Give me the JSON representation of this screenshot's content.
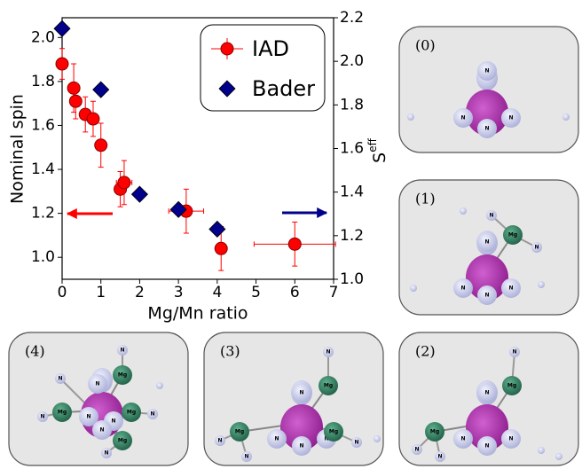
{
  "chart_data": {
    "type": "scatter",
    "xlabel": "Mg/Mn ratio",
    "ylabel": "Nominal spin",
    "y2label": "S",
    "y2label_superscript": "eff",
    "xlim": [
      0,
      7
    ],
    "xticks": [
      0,
      1,
      2,
      3,
      4,
      5,
      6,
      7
    ],
    "ylim": [
      0.9,
      2.09
    ],
    "yticks": [
      {
        "value": 1.0,
        "label": "1.0"
      },
      1.2,
      1.4,
      1.6,
      1.8,
      {
        "value": 2.0,
        "label": "2.0"
      }
    ],
    "y2lim": [
      1.0,
      2.2
    ],
    "y2ticks": [
      {
        "value": 1.0,
        "label": "1.0"
      },
      1.2,
      1.4,
      1.6,
      1.8,
      {
        "value": 2.0,
        "label": "2.0"
      },
      2.2
    ],
    "legend": "upper right",
    "series": [
      {
        "name": "IAD",
        "color": "#ff0000",
        "marker": "circle",
        "x": [
          0,
          0.3,
          0.35,
          0.6,
          0.8,
          1.0,
          1.5,
          1.6,
          3.2,
          4.1,
          6.0
        ],
        "values": [
          1.88,
          1.77,
          1.71,
          1.65,
          1.63,
          1.51,
          1.31,
          1.34,
          1.21,
          1.04,
          1.06
        ],
        "yerr": [
          0.07,
          0.11,
          0.08,
          0.08,
          0.08,
          0.1,
          0.08,
          0.1,
          0.1,
          0.1,
          0.1
        ],
        "xerr": [
          0,
          0.1,
          0.1,
          0.1,
          0.1,
          0.1,
          0.15,
          0.2,
          0.45,
          0.1,
          1.05
        ]
      },
      {
        "name": "Bader",
        "color": "#00008b",
        "marker": "diamond",
        "axis": "y2",
        "x": [
          0,
          1,
          2,
          3,
          4
        ],
        "values": [
          2.15,
          1.87,
          1.39,
          1.32,
          1.23
        ]
      }
    ]
  },
  "panels": [
    {
      "label": "(0)",
      "atoms": [
        "N",
        "N",
        "N",
        "N"
      ]
    },
    {
      "label": "(1)",
      "atoms": [
        "N",
        "N",
        "N",
        "N",
        "Mg",
        "N",
        "N"
      ]
    },
    {
      "label": "(2)",
      "atoms": [
        "N",
        "N",
        "N",
        "N",
        "Mg",
        "N",
        "Mg",
        "N",
        "N"
      ]
    },
    {
      "label": "(3)",
      "atoms": [
        "N",
        "N",
        "N",
        "N",
        "Mg",
        "N",
        "Mg",
        "N",
        "Mg",
        "N",
        "N"
      ]
    },
    {
      "label": "(4)",
      "atoms": [
        "N",
        "N",
        "N",
        "N",
        "Mg",
        "N",
        "Mg",
        "N",
        "Mg",
        "N",
        "Mg",
        "N",
        "N"
      ]
    }
  ]
}
